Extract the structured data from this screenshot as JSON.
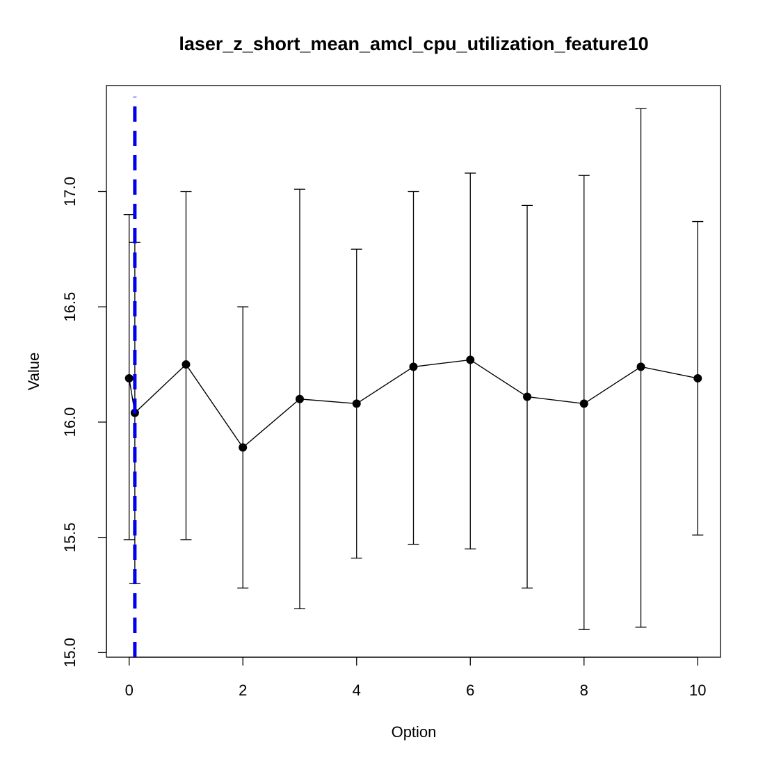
{
  "chart_data": {
    "type": "line",
    "title": "laser_z_short_mean_amcl_cpu_utilization_feature10",
    "xlabel": "Option",
    "ylabel": "Value",
    "xlim": [
      -0.4,
      10.4
    ],
    "ylim": [
      14.98,
      17.46
    ],
    "x_ticks": [
      0,
      2,
      4,
      6,
      8,
      10
    ],
    "x_tick_labels": [
      "0",
      "2",
      "4",
      "6",
      "8",
      "10"
    ],
    "y_ticks": [
      15.0,
      15.5,
      16.0,
      16.5,
      17.0
    ],
    "y_tick_labels": [
      "15.0",
      "15.5",
      "16.0",
      "16.5",
      "17.0"
    ],
    "grid": false,
    "series": [
      {
        "x": [
          0,
          0.1,
          1,
          2,
          3,
          4,
          5,
          6,
          7,
          8,
          9,
          10
        ],
        "y": [
          16.19,
          16.04,
          16.25,
          15.89,
          16.1,
          16.08,
          16.24,
          16.27,
          16.11,
          16.08,
          16.24,
          16.19
        ],
        "lower": [
          15.49,
          15.3,
          15.49,
          15.28,
          15.19,
          15.41,
          15.47,
          15.45,
          15.28,
          15.1,
          15.11,
          15.51
        ],
        "upper": [
          16.9,
          16.78,
          17.0,
          16.5,
          17.01,
          16.75,
          17.0,
          17.08,
          16.94,
          17.07,
          17.36,
          16.87
        ],
        "color": "#000000"
      }
    ],
    "reference_line": {
      "x": 0.1,
      "color": "#0000ee",
      "style": "dashed"
    }
  }
}
